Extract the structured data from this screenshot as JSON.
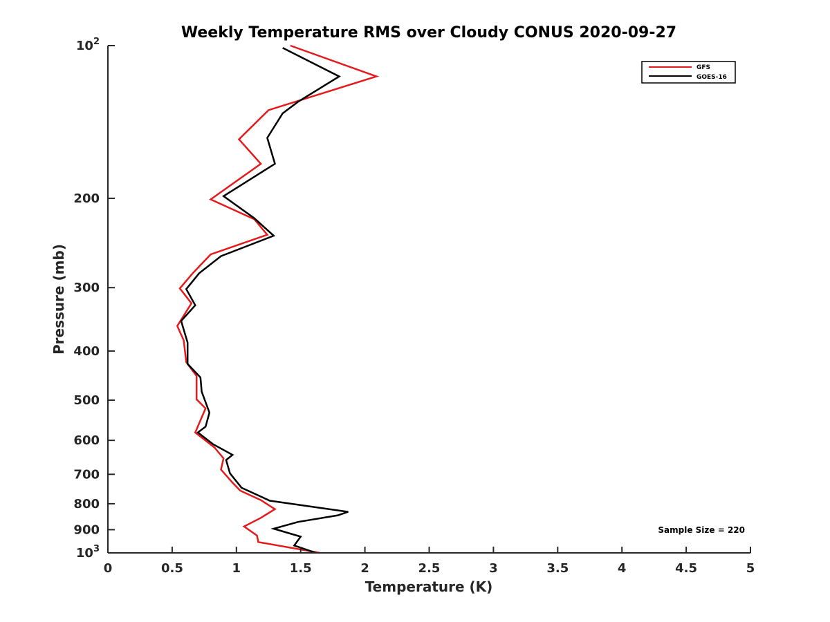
{
  "chart_data": {
    "type": "line",
    "title": "Weekly Temperature RMS over Cloudy CONUS 2020-09-27",
    "xlabel": "Temperature (K)",
    "ylabel": "Pressure (mb)",
    "xlim": [
      0,
      5
    ],
    "ylim": [
      100,
      1000
    ],
    "y_scale": "log",
    "y_reversed": true,
    "grid": false,
    "legend_position": "top-right",
    "x_ticks": [
      0,
      0.5,
      1,
      1.5,
      2,
      2.5,
      3,
      3.5,
      4,
      4.5,
      5
    ],
    "x_tick_labels": [
      "0",
      "0.5",
      "1",
      "1.5",
      "2",
      "2.5",
      "3",
      "3.5",
      "4",
      "4.5",
      "5"
    ],
    "y_ticks": [
      100,
      200,
      300,
      400,
      500,
      600,
      700,
      800,
      900,
      1000
    ],
    "y_tick_labels": [
      {
        "base": "10",
        "exp": "2"
      },
      {
        "base": "200",
        "exp": ""
      },
      {
        "base": "300",
        "exp": ""
      },
      {
        "base": "400",
        "exp": ""
      },
      {
        "base": "500",
        "exp": ""
      },
      {
        "base": "600",
        "exp": ""
      },
      {
        "base": "700",
        "exp": ""
      },
      {
        "base": "800",
        "exp": ""
      },
      {
        "base": "900",
        "exp": ""
      },
      {
        "base": "10",
        "exp": "3"
      }
    ],
    "annotation": "Sample Size = 220",
    "series": [
      {
        "name": "GFS",
        "color": "#e41a1c",
        "points": [
          [
            1.42,
            100
          ],
          [
            2.09,
            115
          ],
          [
            1.25,
            134
          ],
          [
            1.02,
            153
          ],
          [
            1.19,
            171
          ],
          [
            0.8,
            201
          ],
          [
            1.14,
            220
          ],
          [
            1.24,
            236
          ],
          [
            0.8,
            258
          ],
          [
            0.66,
            281
          ],
          [
            0.56,
            301
          ],
          [
            0.65,
            322
          ],
          [
            0.54,
            357
          ],
          [
            0.59,
            381
          ],
          [
            0.61,
            421
          ],
          [
            0.69,
            448
          ],
          [
            0.69,
            498
          ],
          [
            0.76,
            519
          ],
          [
            0.68,
            579
          ],
          [
            0.83,
            620
          ],
          [
            0.9,
            651
          ],
          [
            0.88,
            685
          ],
          [
            0.97,
            727
          ],
          [
            1.03,
            754
          ],
          [
            1.19,
            787
          ],
          [
            1.3,
            820
          ],
          [
            1.19,
            853
          ],
          [
            1.06,
            887
          ],
          [
            1.16,
            924
          ],
          [
            1.17,
            952
          ],
          [
            1.65,
            1000
          ]
        ]
      },
      {
        "name": "GOES-16",
        "color": "#000000",
        "points": [
          [
            1.36,
            101
          ],
          [
            1.8,
            115
          ],
          [
            1.48,
            129
          ],
          [
            1.36,
            136
          ],
          [
            1.24,
            152
          ],
          [
            1.3,
            171
          ],
          [
            0.9,
            198
          ],
          [
            1.14,
            219
          ],
          [
            1.29,
            237
          ],
          [
            0.88,
            260
          ],
          [
            0.71,
            281
          ],
          [
            0.61,
            302
          ],
          [
            0.68,
            325
          ],
          [
            0.57,
            349
          ],
          [
            0.62,
            385
          ],
          [
            0.62,
            424
          ],
          [
            0.72,
            451
          ],
          [
            0.73,
            481
          ],
          [
            0.79,
            529
          ],
          [
            0.76,
            564
          ],
          [
            0.7,
            579
          ],
          [
            0.82,
            611
          ],
          [
            0.97,
            641
          ],
          [
            0.92,
            656
          ],
          [
            0.95,
            697
          ],
          [
            1.04,
            744
          ],
          [
            1.26,
            789
          ],
          [
            1.87,
            830
          ],
          [
            1.79,
            843
          ],
          [
            1.48,
            869
          ],
          [
            1.29,
            896
          ],
          [
            1.5,
            929
          ],
          [
            1.45,
            967
          ],
          [
            1.62,
            1000
          ]
        ]
      }
    ]
  }
}
